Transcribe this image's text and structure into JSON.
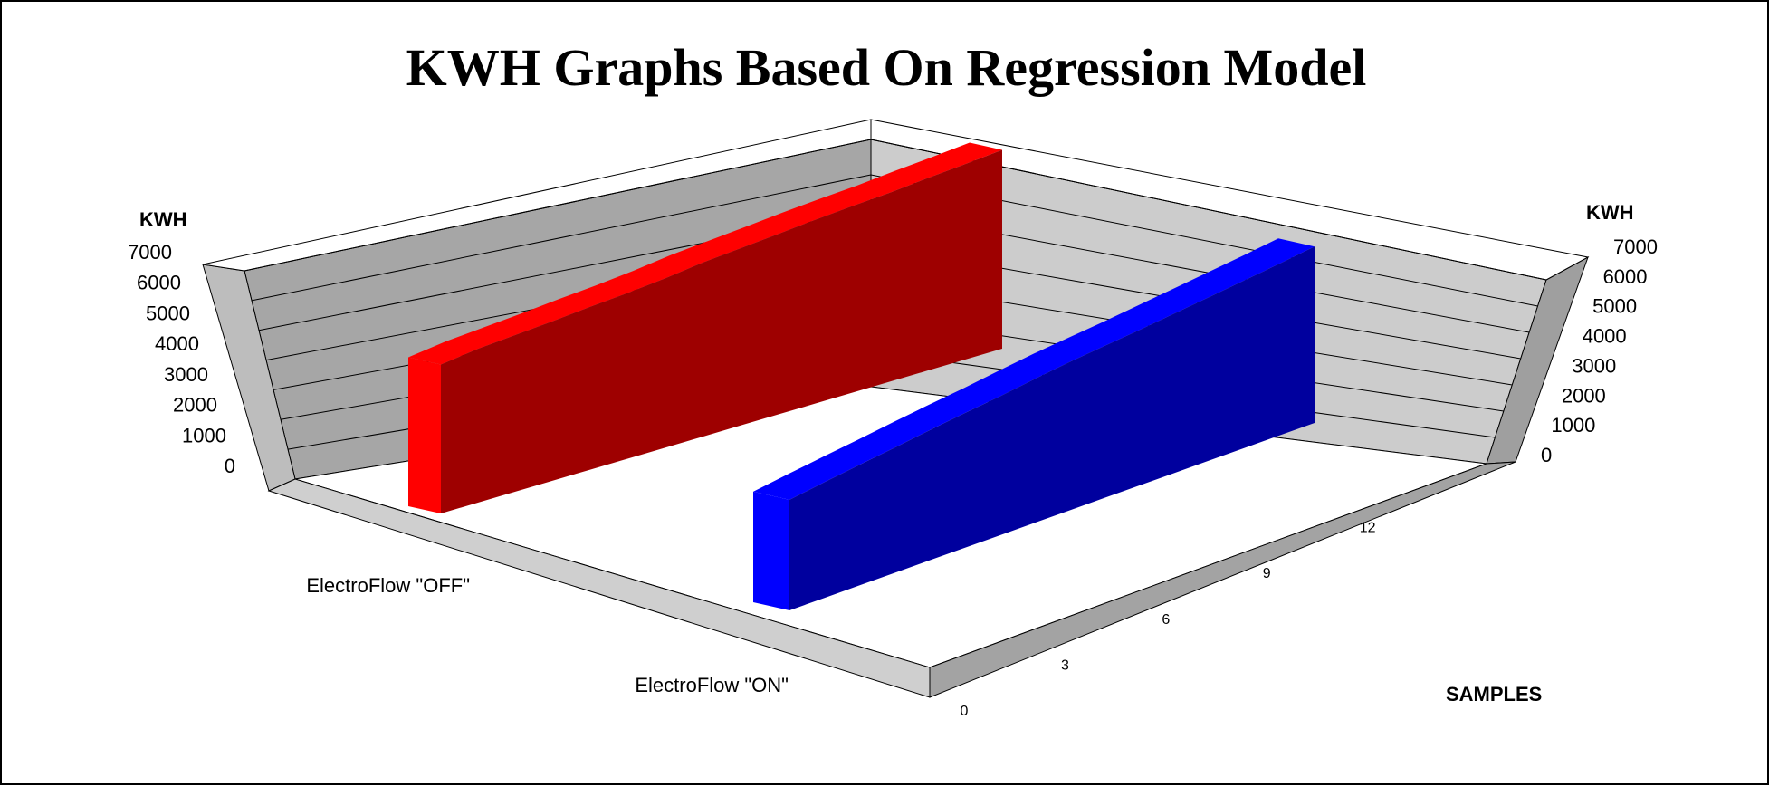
{
  "chart_data": {
    "type": "area",
    "variant": "3d-ribbon",
    "title": "KWH Graphs Based On Regression Model",
    "ylabel_left": "KWH",
    "ylabel_right": "KWH",
    "xlabel": "SAMPLES",
    "ylim": [
      0,
      7000
    ],
    "y_ticks": [
      "0",
      "1000",
      "2000",
      "3000",
      "4000",
      "5000",
      "6000",
      "7000"
    ],
    "x_ticks": [
      "0",
      "3",
      "6",
      "9",
      "12"
    ],
    "x": [
      0,
      1,
      2,
      3,
      4,
      5,
      6,
      7,
      8,
      9,
      10,
      11,
      12,
      13,
      14,
      15
    ],
    "grid": true,
    "series": [
      {
        "name": "ElectroFlow \"OFF\"",
        "color": "#ff0000",
        "values": [
          4700,
          4880,
          5000,
          5120,
          5260,
          5380,
          5530,
          5720,
          5860,
          6000,
          6150,
          6280,
          6400,
          6560,
          6700,
          6860
        ]
      },
      {
        "name": "ElectroFlow \"ON\"",
        "color": "#0000ff",
        "values": [
          3300,
          3480,
          3650,
          3820,
          4000,
          4170,
          4330,
          4520,
          4700,
          4850,
          5000,
          5170,
          5340,
          5520,
          5700,
          5900
        ]
      }
    ],
    "colors": {
      "background": "#ffffff",
      "wall": "#c8c8c8",
      "wall_dark": "#9a9a9a",
      "floor": "#ffffff"
    }
  }
}
